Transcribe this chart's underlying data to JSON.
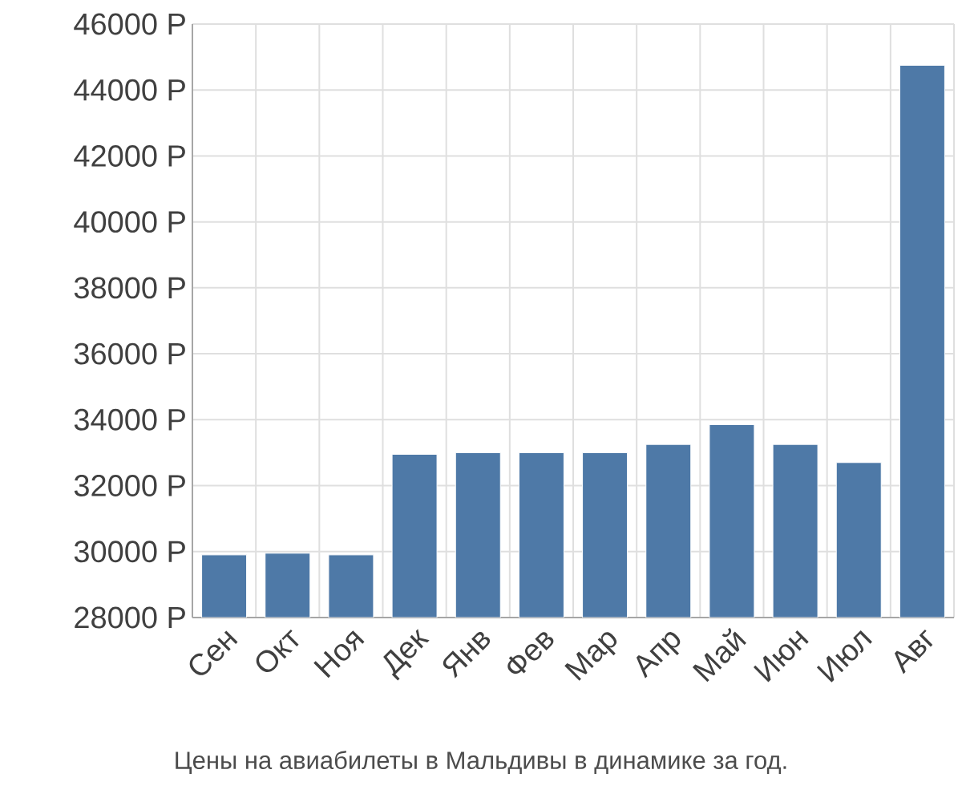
{
  "chart_data": {
    "type": "bar",
    "categories": [
      "Сен",
      "Окт",
      "Ноя",
      "Дек",
      "Янв",
      "Фев",
      "Мар",
      "Апр",
      "Май",
      "Июн",
      "Июл",
      "Авг"
    ],
    "values": [
      29900,
      29950,
      29900,
      32950,
      33000,
      33000,
      33000,
      33250,
      33850,
      33250,
      32700,
      44750
    ],
    "color": "#4e79a7",
    "ylim": [
      28000,
      46000
    ],
    "yticks": [
      {
        "value": 28000,
        "label": "28000 Р"
      },
      {
        "value": 30000,
        "label": "30000 Р"
      },
      {
        "value": 32000,
        "label": "32000 Р"
      },
      {
        "value": 34000,
        "label": "34000 Р"
      },
      {
        "value": 36000,
        "label": "36000 Р"
      },
      {
        "value": 38000,
        "label": "38000 Р"
      },
      {
        "value": 40000,
        "label": "40000 Р"
      },
      {
        "value": 42000,
        "label": "42000 Р"
      },
      {
        "value": 44000,
        "label": "44000 Р"
      },
      {
        "value": 46000,
        "label": "46000 Р"
      }
    ],
    "grid": true,
    "annotations": [
      "Цены на авиабилеты в Мальдивы в динамике за год."
    ]
  }
}
